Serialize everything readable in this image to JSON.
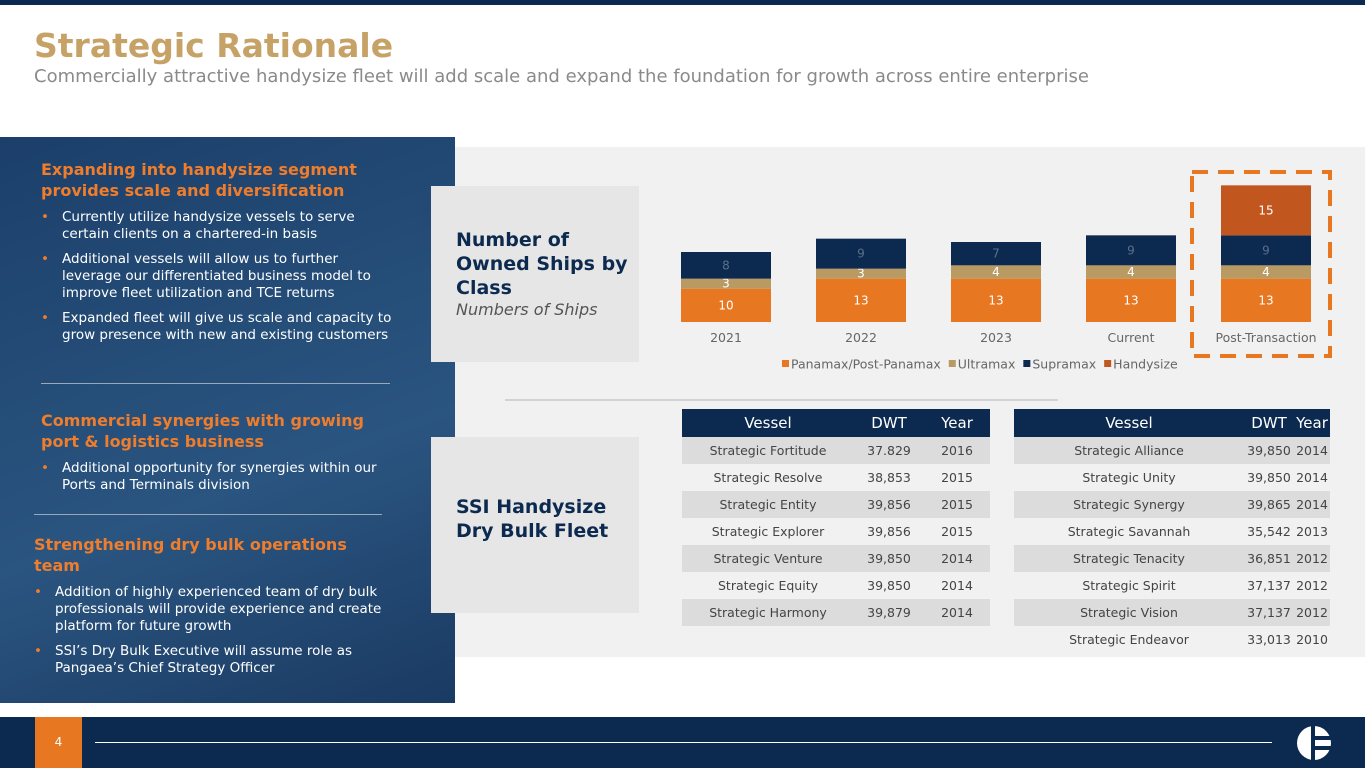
{
  "header": {
    "title": "Strategic Rationale",
    "subtitle": "Commercially attractive handysize fleet will add scale and expand the foundation for growth across entire enterprise"
  },
  "left_panel": {
    "sections": [
      {
        "heading": "Expanding into handysize segment provides scale and diversification",
        "bullets": [
          "Currently utilize handysize vessels to serve certain clients on a chartered-in basis",
          "Additional vessels will allow us to further leverage our differentiated business model to improve fleet utilization and TCE returns",
          "Expanded fleet will give us scale and capacity to grow presence with new and existing customers"
        ]
      },
      {
        "heading": "Commercial synergies with growing port & logistics business",
        "bullets": [
          "Additional opportunity for synergies within our Ports and Terminals  division"
        ]
      },
      {
        "heading": "Strengthening dry bulk operations team",
        "bullets": [
          "Addition of highly experienced team of dry bulk professionals will provide experience and create platform for future growth",
          "SSI’s Dry Bulk Executive will assume role as Pangaea’s Chief Strategy Officer"
        ]
      }
    ]
  },
  "chart_data": {
    "type": "bar",
    "title": "Number of Owned Ships by Class",
    "subtitle": "Numbers of Ships",
    "stacked": true,
    "categories": [
      "2021",
      "2022",
      "2023",
      "Current",
      "Post-Transaction"
    ],
    "series": [
      {
        "name": "Panamax/Post-Panamax",
        "color": "#e87722",
        "values": [
          10,
          13,
          13,
          13,
          13
        ]
      },
      {
        "name": "Ultramax",
        "color": "#b99a62",
        "values": [
          3,
          3,
          4,
          4,
          4
        ]
      },
      {
        "name": "Supramax",
        "color": "#0c2a4f",
        "values": [
          8,
          9,
          7,
          9,
          9
        ]
      },
      {
        "name": "Handysize",
        "color": "#c2561f",
        "values": [
          null,
          null,
          null,
          null,
          15
        ]
      }
    ]
  },
  "fleet": {
    "title": "SSI Handysize Dry Bulk Fleet",
    "tables": [
      {
        "columns": [
          "Vessel",
          "DWT",
          "Year"
        ],
        "rows": [
          [
            "Strategic Fortitude",
            "37.829",
            "2016"
          ],
          [
            "Strategic Resolve",
            "38,853",
            "2015"
          ],
          [
            "Strategic Entity",
            "39,856",
            "2015"
          ],
          [
            "Strategic Explorer",
            "39,856",
            "2015"
          ],
          [
            "Strategic Venture",
            "39,850",
            "2014"
          ],
          [
            "Strategic Equity",
            "39,850",
            "2014"
          ],
          [
            "Strategic Harmony",
            "39,879",
            "2014"
          ]
        ]
      },
      {
        "columns": [
          "Vessel",
          "DWT",
          "Year"
        ],
        "rows": [
          [
            "Strategic Alliance",
            "39,850",
            "2014"
          ],
          [
            "Strategic Unity",
            "39,850",
            "2014"
          ],
          [
            "Strategic Synergy",
            "39,865",
            "2014"
          ],
          [
            "Strategic Savannah",
            "35,542",
            "2013"
          ],
          [
            "Strategic Tenacity",
            "36,851",
            "2012"
          ],
          [
            "Strategic Spirit",
            "37,137",
            "2012"
          ],
          [
            "Strategic Vision",
            "37,137",
            "2012"
          ],
          [
            "Strategic Endeavor",
            "33,013",
            "2010"
          ]
        ]
      }
    ]
  },
  "footer": {
    "page": "4"
  }
}
